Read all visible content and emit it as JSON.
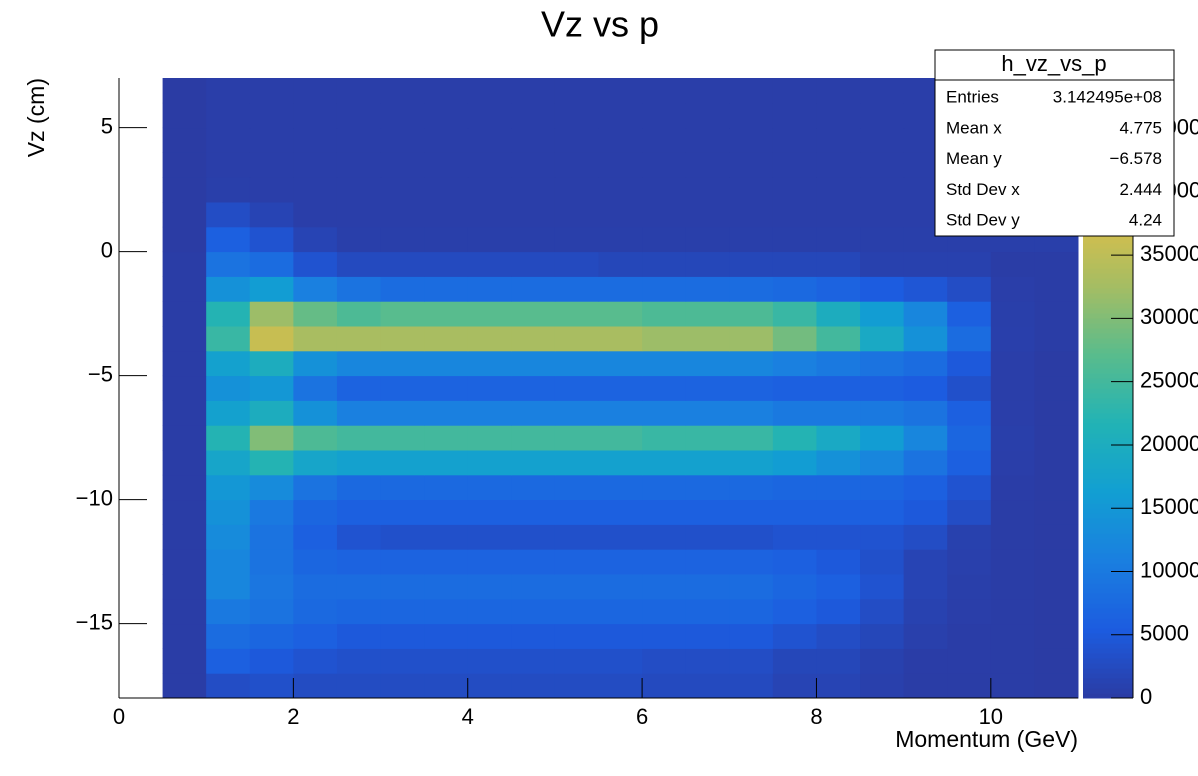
{
  "chart_data": {
    "type": "heatmap",
    "title": "Vz vs p",
    "x_label": "Momentum (GeV)",
    "y_label": "Vz (cm)",
    "xlim": [
      0,
      11
    ],
    "ylim": [
      -18,
      7
    ],
    "zlim": [
      0,
      49000
    ],
    "xticks": [
      0,
      2,
      4,
      6,
      8,
      10
    ],
    "yticks": [
      {
        "value": -15,
        "label": "−15"
      },
      {
        "value": -10,
        "label": "−10"
      },
      {
        "value": -5,
        "label": "−5"
      },
      0,
      5
    ],
    "zticks": [
      0,
      5000,
      10000,
      15000,
      20000,
      25000,
      30000,
      35000,
      40000,
      45000
    ],
    "xbins": [
      0,
      0.5,
      1,
      1.5,
      2,
      2.5,
      3,
      3.5,
      4,
      4.5,
      5,
      5.5,
      6,
      6.5,
      7,
      7.5,
      8,
      8.5,
      9,
      9.5,
      10,
      10.5,
      11
    ],
    "ybins": [
      -18,
      -17,
      -16,
      -15,
      -14,
      -13,
      -12,
      -11,
      -10,
      -9,
      -8,
      -7,
      -6,
      -5,
      -4,
      -3,
      -2,
      -1,
      0,
      1,
      2,
      3,
      4,
      5,
      6,
      7
    ],
    "palette": [
      "#2b3ba3",
      "#1c5ce0",
      "#1a7fe0",
      "#129fd2",
      "#22b3b5",
      "#5abc8c",
      "#a6bd63",
      "#dcbf48",
      "#f6c93a",
      "#f9f00f"
    ],
    "z": [
      [
        0,
        300,
        3000,
        3500,
        2800,
        2800,
        2800,
        2800,
        2800,
        2800,
        2800,
        2800,
        2500,
        2500,
        2500,
        1500,
        1500,
        800,
        300,
        300,
        300,
        100
      ],
      [
        0,
        300,
        6000,
        5000,
        4000,
        3500,
        3500,
        3500,
        3500,
        3500,
        3500,
        3500,
        3000,
        3000,
        3000,
        2000,
        2000,
        1000,
        400,
        400,
        300,
        100
      ],
      [
        0,
        300,
        8000,
        7000,
        6000,
        5000,
        5000,
        5000,
        5000,
        5000,
        5000,
        5000,
        5000,
        5000,
        5000,
        4000,
        3000,
        2000,
        800,
        400,
        300,
        100
      ],
      [
        0,
        300,
        10000,
        9000,
        7500,
        7000,
        7000,
        7000,
        7000,
        7000,
        7000,
        7000,
        7000,
        7000,
        7000,
        6000,
        5000,
        3000,
        1200,
        500,
        300,
        100
      ],
      [
        0,
        300,
        12000,
        9500,
        8000,
        8000,
        8000,
        8000,
        8000,
        8000,
        8000,
        8000,
        8000,
        8000,
        8000,
        7000,
        6000,
        4000,
        1500,
        600,
        300,
        100
      ],
      [
        0,
        300,
        12000,
        9000,
        7000,
        6500,
        6500,
        6500,
        6500,
        6500,
        6500,
        6500,
        6500,
        6500,
        6500,
        6000,
        5000,
        3500,
        1500,
        800,
        300,
        100
      ],
      [
        0,
        300,
        13000,
        9000,
        6000,
        4000,
        3500,
        3500,
        3500,
        3500,
        3500,
        3500,
        3500,
        3500,
        3500,
        4000,
        4000,
        4000,
        3000,
        1000,
        300,
        100
      ],
      [
        0,
        300,
        14000,
        10000,
        7000,
        6000,
        6000,
        6000,
        6000,
        6000,
        6000,
        6000,
        6000,
        6000,
        6000,
        6000,
        6000,
        6000,
        5000,
        3000,
        300,
        100
      ],
      [
        0,
        300,
        15000,
        13000,
        9000,
        7500,
        7500,
        7500,
        7500,
        7500,
        7500,
        7500,
        7500,
        7500,
        7500,
        7000,
        7000,
        7000,
        6000,
        4000,
        400,
        100
      ],
      [
        0,
        300,
        18000,
        22000,
        18000,
        17000,
        17000,
        17000,
        17000,
        17000,
        17000,
        17000,
        17000,
        17000,
        17000,
        16000,
        14000,
        12000,
        9000,
        6000,
        500,
        100
      ],
      [
        0,
        300,
        22000,
        30000,
        26000,
        25000,
        25000,
        25000,
        25000,
        25000,
        25000,
        25000,
        24000,
        24000,
        24000,
        22000,
        19000,
        16000,
        12000,
        7000,
        600,
        100
      ],
      [
        0,
        300,
        17000,
        20000,
        14000,
        11000,
        11000,
        11000,
        11000,
        11000,
        11000,
        11000,
        11000,
        11000,
        11000,
        10000,
        10000,
        10000,
        9000,
        6000,
        500,
        100
      ],
      [
        0,
        300,
        14000,
        15000,
        9000,
        6500,
        6500,
        6500,
        6500,
        6500,
        6500,
        6500,
        6500,
        6500,
        6500,
        6000,
        6000,
        6000,
        5500,
        3500,
        500,
        100
      ],
      [
        0,
        300,
        17000,
        20000,
        14000,
        12000,
        12000,
        12000,
        12000,
        12000,
        12000,
        12000,
        12000,
        12000,
        12000,
        11000,
        10000,
        9000,
        8000,
        5000,
        500,
        100
      ],
      [
        0,
        300,
        24000,
        36000,
        33000,
        33000,
        33000,
        33000,
        33000,
        33000,
        33000,
        33000,
        32000,
        32000,
        32000,
        29000,
        25000,
        19000,
        14000,
        8000,
        700,
        300
      ],
      [
        0,
        300,
        22000,
        32000,
        28000,
        26000,
        27000,
        27000,
        27000,
        27000,
        27000,
        27000,
        26000,
        26000,
        26000,
        24000,
        20000,
        16000,
        12000,
        6000,
        600,
        300
      ],
      [
        0,
        300,
        14000,
        16000,
        11000,
        9000,
        8000,
        8000,
        8000,
        8000,
        8000,
        8000,
        8000,
        8000,
        8000,
        7500,
        6500,
        5500,
        4500,
        3000,
        500,
        300
      ],
      [
        0,
        300,
        9000,
        8000,
        4000,
        2500,
        2500,
        2500,
        2500,
        2500,
        2500,
        2000,
        2000,
        2000,
        2000,
        2000,
        2000,
        1000,
        1000,
        1000,
        300,
        300
      ],
      [
        0,
        100,
        6000,
        4000,
        1500,
        600,
        600,
        600,
        600,
        600,
        600,
        600,
        600,
        600,
        600,
        600,
        600,
        600,
        600,
        600,
        600,
        600
      ],
      [
        0,
        100,
        3000,
        1500,
        500,
        500,
        500,
        500,
        500,
        500,
        500,
        500,
        500,
        500,
        500,
        500,
        500,
        500,
        500,
        500,
        500,
        500
      ],
      [
        0,
        100,
        600,
        500,
        500,
        500,
        500,
        500,
        500,
        500,
        500,
        500,
        500,
        500,
        500,
        500,
        500,
        500,
        500,
        500,
        500,
        500
      ],
      [
        0,
        100,
        500,
        500,
        500,
        500,
        500,
        500,
        500,
        500,
        500,
        500,
        500,
        500,
        500,
        500,
        500,
        500,
        500,
        500,
        500,
        500
      ],
      [
        0,
        100,
        500,
        500,
        500,
        500,
        500,
        500,
        500,
        500,
        500,
        500,
        500,
        500,
        500,
        500,
        500,
        500,
        500,
        500,
        500,
        500
      ],
      [
        0,
        100,
        500,
        500,
        500,
        500,
        500,
        500,
        500,
        500,
        500,
        500,
        500,
        500,
        500,
        500,
        500,
        500,
        500,
        500,
        500,
        500
      ],
      [
        0,
        100,
        500,
        500,
        500,
        500,
        500,
        500,
        500,
        500,
        500,
        500,
        500,
        500,
        500,
        500,
        500,
        500,
        500,
        500,
        500,
        500
      ]
    ],
    "stats": {
      "title": "h_vz_vs_p",
      "rows": [
        [
          "Entries",
          "3.142495e+08"
        ],
        [
          "Mean x",
          "4.775"
        ],
        [
          "Mean y",
          "−6.578"
        ],
        [
          "Std Dev x",
          "2.444"
        ],
        [
          "Std Dev y",
          "4.24"
        ]
      ]
    }
  }
}
